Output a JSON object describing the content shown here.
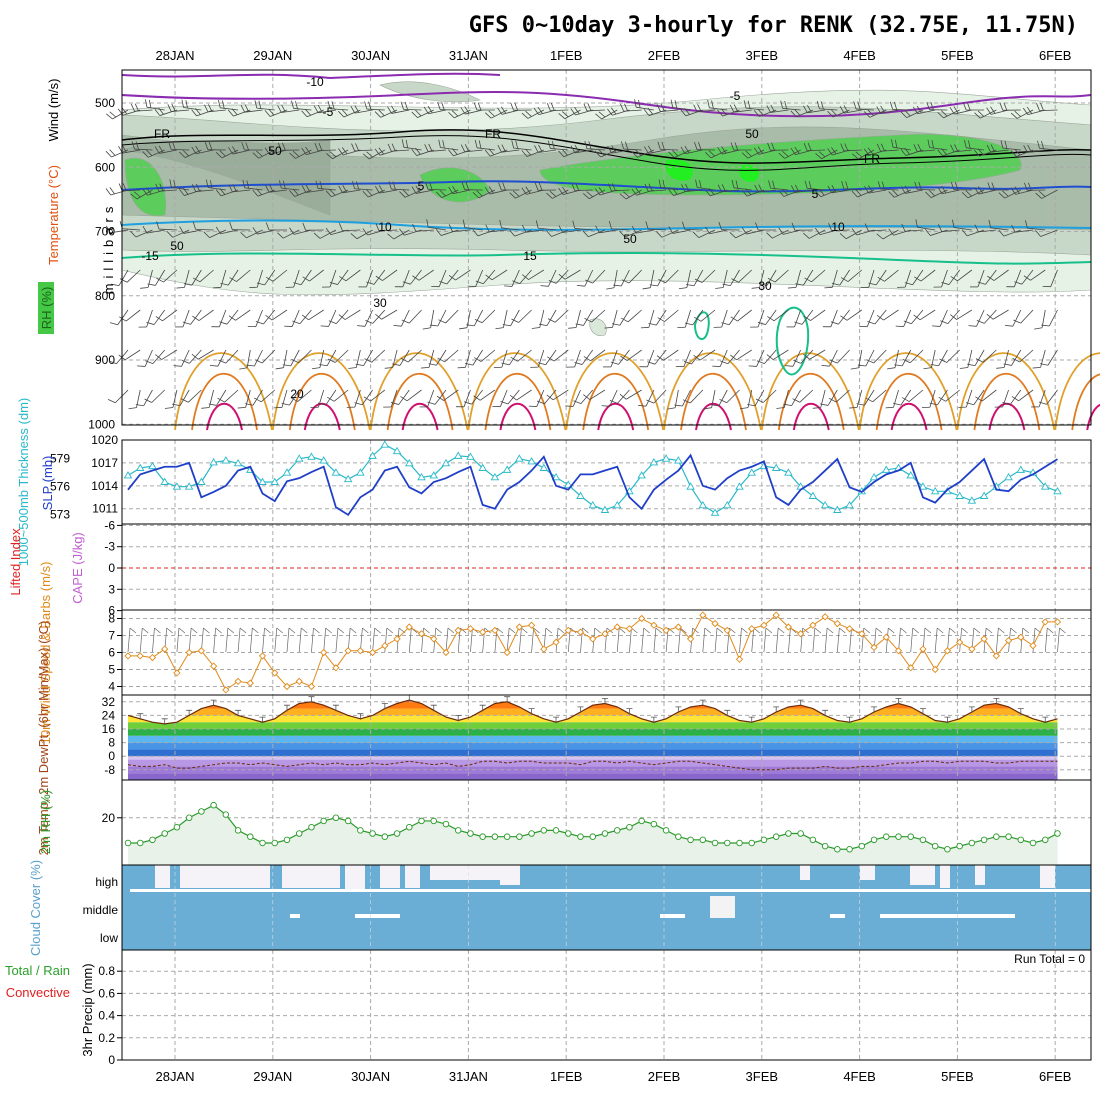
{
  "title": "GFS 0~10day 3-hourly for RENK (32.75E, 11.75N)",
  "dates": [
    "28JAN",
    "29JAN",
    "30JAN",
    "31JAN",
    "1FEB",
    "2FEB",
    "3FEB",
    "4FEB",
    "5FEB",
    "6FEB"
  ],
  "colors": {
    "grid": "#aaaaaa",
    "frame": "#000000",
    "slp": "#1f3fc8",
    "thickness": "#29b9c9",
    "wind": "#e08a1a",
    "rh": "#2a9a2a",
    "cloud": "#6aaed6",
    "lifted": "#e02020",
    "cape": "#c060d0"
  },
  "chart_data": [
    {
      "type": "area",
      "panel": "upper-air",
      "ylabel": "millibars",
      "side_labels": {
        "wind": "Wind (m/s)",
        "temperature": "Temperature (°C)",
        "rh": "RH (%)"
      },
      "yticks": [
        "500",
        "600",
        "700",
        "800",
        "900",
        "1000"
      ],
      "ylim": [
        1000,
        450
      ],
      "temperature_contour_labels": [
        "-10",
        "-5",
        "-5",
        "FR",
        "FR",
        "FR",
        "5",
        "5",
        "10",
        "10",
        "-15",
        "15",
        "20"
      ],
      "rh_contour_labels": [
        "50",
        "50",
        "50",
        "50",
        "30",
        "30"
      ]
    },
    {
      "type": "line",
      "panel": "slp-thickness",
      "series": [
        {
          "name": "SLP (mb)",
          "color": "#1f3fc8",
          "yticks": [
            "1011",
            "1014",
            "1017",
            "1020"
          ],
          "ylim": [
            1009,
            1020
          ],
          "values": [
            1013.5,
            1015.5,
            1016,
            1016.5,
            1016.5,
            1017,
            1012.5,
            1013.2,
            1014,
            1016,
            1016.5,
            1013,
            1012,
            1014.6,
            1015,
            1015.8,
            1016.5,
            1011.2,
            1010.2,
            1012.5,
            1013.5,
            1016,
            1016.5,
            1013.8,
            1013,
            1014.5,
            1015,
            1015.8,
            1016.5,
            1011.5,
            1011,
            1013.5,
            1014.5,
            1016,
            1017.8,
            1014,
            1013.5,
            1015.5,
            1015.5,
            1016,
            1016.5,
            1012.5,
            1011,
            1013.5,
            1014.8,
            1016,
            1018,
            1014,
            1013.5,
            1015,
            1016,
            1016.5,
            1017.2,
            1012.5,
            1011.5,
            1013.5,
            1014.5,
            1016,
            1017.5,
            1013.8,
            1013.2,
            1014.5,
            1015.5,
            1016,
            1017,
            1012.5,
            1011.8,
            1013.5,
            1014.5,
            1016,
            1017.5,
            1013.5,
            1013.3,
            1014.8,
            1015.5,
            1016.5,
            1017.5
          ]
        },
        {
          "name": "1000~500mb Thickness (dm)",
          "color": "#29b9c9",
          "yticks": [
            "573",
            "576",
            "579"
          ],
          "ylim": [
            572,
            581
          ],
          "values": [
            577.2,
            578,
            578.2,
            576.5,
            576,
            576,
            576.5,
            578.6,
            578.8,
            578.5,
            577.8,
            576.5,
            576.5,
            577.5,
            579,
            579.2,
            578.8,
            577.5,
            576.8,
            577.5,
            579.3,
            580.5,
            579.8,
            578.5,
            577,
            577.2,
            578.5,
            579.3,
            579.2,
            578,
            577,
            577.8,
            579,
            578.7,
            578,
            577,
            576.2,
            575,
            574,
            573.5,
            574,
            575.5,
            577.2,
            578.6,
            579,
            578.8,
            576,
            574,
            573.2,
            574,
            576,
            577.5,
            578.2,
            578,
            577.5,
            576,
            575,
            574,
            573.5,
            574,
            575.5,
            577,
            577.8,
            578,
            577.2,
            576,
            575.5,
            575.5,
            575,
            574.5,
            575,
            576,
            577,
            577.8,
            577.5,
            576,
            575.5
          ]
        }
      ]
    },
    {
      "type": "line",
      "panel": "stability",
      "series": [
        {
          "name": "Lifted Index",
          "color": "#e02020",
          "yticks": [
            "-6",
            "-3",
            "0",
            "3",
            "6"
          ]
        },
        {
          "name": "CAPE (J/kg)",
          "color": "#c060d0"
        }
      ],
      "values": []
    },
    {
      "type": "line",
      "panel": "10m-wind",
      "series": [
        {
          "name": "10m Wind Speed & Barbs (m/s)",
          "color": "#e08a1a",
          "values": [
            5.8,
            5.8,
            5.7,
            6.2,
            4.8,
            6,
            6.1,
            5.2,
            3.8,
            4.3,
            4.2,
            5.8,
            4.8,
            4,
            4.3,
            4,
            6,
            5.1,
            6.1,
            6.1,
            6,
            6.4,
            6.8,
            7.5,
            7.1,
            6.8,
            6,
            7.3,
            7.4,
            7.2,
            7.3,
            6,
            7.5,
            7.6,
            6.2,
            6.6,
            7.3,
            7.2,
            6.8,
            7.1,
            7.5,
            7.4,
            8,
            7.6,
            7.3,
            7.5,
            6.8,
            8.2,
            7.7,
            7.3,
            5.6,
            7.4,
            7.6,
            8.2,
            7.5,
            7.1,
            7.6,
            8.1,
            7.7,
            7.4,
            7.1,
            6.3,
            6.9,
            6.1,
            5.1,
            6.2,
            5,
            6.1,
            6.6,
            6.2,
            6.8,
            5.8,
            6.7,
            6.9,
            6.4,
            7.8,
            7.8
          ]
        }
      ],
      "yticks": [
        "4",
        "5",
        "6",
        "7",
        "8"
      ],
      "ylim": [
        3.5,
        8.5
      ]
    },
    {
      "type": "area",
      "panel": "2m-temp",
      "ylabel": "2m Temp, 2m DewPt, (6hr Min/Max) (°C)",
      "yticks": [
        "-8",
        "0",
        "8",
        "16",
        "24",
        "32"
      ],
      "ylim": [
        -14,
        36
      ],
      "temp_values": [
        24,
        22,
        20,
        19,
        20,
        24,
        28,
        30,
        28,
        24,
        22,
        20,
        22,
        27,
        31,
        32,
        30,
        27,
        24,
        22,
        24,
        28,
        31,
        33,
        31,
        27,
        23,
        21,
        23,
        27,
        31,
        32,
        29,
        25,
        22,
        20,
        22,
        26,
        30,
        31,
        29,
        25,
        22,
        20,
        22,
        26,
        29,
        30,
        28,
        24,
        21,
        20,
        22,
        26,
        29,
        30,
        28,
        24,
        21,
        20,
        22,
        26,
        29,
        31,
        29,
        25,
        21,
        20,
        22,
        26,
        30,
        31,
        29,
        25,
        22,
        20,
        22
      ],
      "dewpoint_values": [
        -5,
        -6,
        -6,
        -5,
        -7,
        -7,
        -6,
        -5,
        -4,
        -4,
        -5,
        -4,
        -5,
        -6,
        -5,
        -4,
        -5,
        -4,
        -5,
        -5,
        -4,
        -5,
        -4,
        -3,
        -4,
        -5,
        -4,
        -6,
        -5,
        -3,
        -3,
        -4,
        -3,
        -3,
        -4,
        -4,
        -4,
        -5,
        -3,
        -3,
        -4,
        -3,
        -4,
        -5,
        -4,
        -3,
        -3,
        -4,
        -5,
        -6,
        -7,
        -8,
        -8,
        -8,
        -7,
        -7,
        -7,
        -6,
        -7,
        -7,
        -6,
        -6,
        -5,
        -4,
        -4,
        -3,
        -3,
        -4,
        -3,
        -3,
        -3,
        -4,
        -4,
        -3,
        -3,
        -3,
        -3
      ]
    },
    {
      "type": "area",
      "panel": "2m-rh",
      "ylabel": "2m RH (%)",
      "yticks": [
        "20"
      ],
      "ylim": [
        5,
        32
      ],
      "values": [
        12,
        12,
        13,
        15,
        17,
        20,
        22,
        24,
        21,
        16,
        14,
        12,
        12,
        13,
        15,
        17,
        19,
        20,
        19,
        16,
        15,
        14,
        15,
        17,
        19,
        19,
        18,
        16,
        15,
        14,
        14,
        14,
        14,
        15,
        16,
        16,
        15,
        14,
        14,
        15,
        16,
        17,
        19,
        18,
        16,
        14,
        13,
        13,
        12,
        12,
        12,
        12,
        13,
        14,
        15,
        15,
        13,
        11,
        10,
        10,
        11,
        13,
        14,
        14,
        14,
        13,
        11,
        10,
        11,
        12,
        13,
        14,
        14,
        13,
        12,
        13,
        15
      ]
    },
    {
      "type": "bar",
      "panel": "cloud-cover",
      "ylabel": "Cloud Cover (%)",
      "levels": [
        "high",
        "middle",
        "low"
      ]
    },
    {
      "type": "bar",
      "panel": "precip",
      "ylabel": "3hr Precip (mm)",
      "side_labels": {
        "total": "Total / Rain",
        "convective": "Convective"
      },
      "yticks": [
        "0",
        "0.2",
        "0.4",
        "0.6",
        "0.8"
      ],
      "ylim": [
        0,
        1.0
      ],
      "run_total": "Run Total = 0",
      "values": []
    }
  ]
}
